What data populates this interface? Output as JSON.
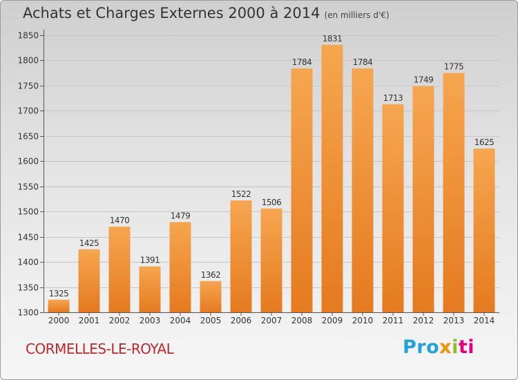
{
  "header": {
    "title": "Achats et Charges Externes 2000 à 2014",
    "subtitle": "(en milliers d'€)"
  },
  "footer": {
    "city": "CORMELLES-LE-ROYAL",
    "logo": {
      "p1": "Pro",
      "p2": "x",
      "p3": "i",
      "p4": "ti"
    }
  },
  "colors": {
    "bar_top": "#f6a650",
    "bar_bottom": "#e57a1f",
    "axis": "#555555",
    "grid": "#c6c6c6"
  },
  "chart_data": {
    "type": "bar",
    "title": "Achats et Charges Externes 2000 à 2014",
    "subtitle": "(en milliers d'€)",
    "categories": [
      "2000",
      "2001",
      "2002",
      "2003",
      "2004",
      "2005",
      "2006",
      "2007",
      "2008",
      "2009",
      "2010",
      "2011",
      "2012",
      "2013",
      "2014"
    ],
    "values": [
      1325,
      1425,
      1470,
      1391,
      1479,
      1362,
      1522,
      1506,
      1784,
      1831,
      1784,
      1713,
      1749,
      1775,
      1625
    ],
    "ylim": [
      1300,
      1850
    ],
    "yticks": [
      1300,
      1350,
      1400,
      1450,
      1500,
      1550,
      1600,
      1650,
      1700,
      1750,
      1800,
      1850
    ],
    "grid": true,
    "data_labels": true
  }
}
